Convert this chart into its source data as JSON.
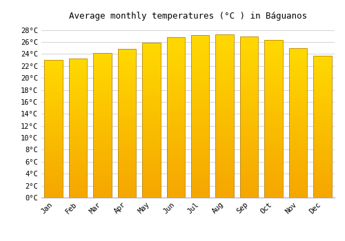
{
  "title": "Average monthly temperatures (°C ) in Báguanos",
  "months": [
    "Jan",
    "Feb",
    "Mar",
    "Apr",
    "May",
    "Jun",
    "Jul",
    "Aug",
    "Sep",
    "Oct",
    "Nov",
    "Dec"
  ],
  "values": [
    23.0,
    23.3,
    24.2,
    24.8,
    25.9,
    26.8,
    27.2,
    27.3,
    26.9,
    26.3,
    25.0,
    23.7
  ],
  "bar_color_bottom": "#F5A623",
  "bar_color_top": "#FFD966",
  "bar_edge_color": "#B8860B",
  "background_color": "#FFFFFF",
  "grid_color": "#CCCCCC",
  "ylim": [
    0,
    29
  ],
  "ytick_step": 2,
  "title_fontsize": 9,
  "tick_fontsize": 7.5,
  "font_family": "monospace"
}
